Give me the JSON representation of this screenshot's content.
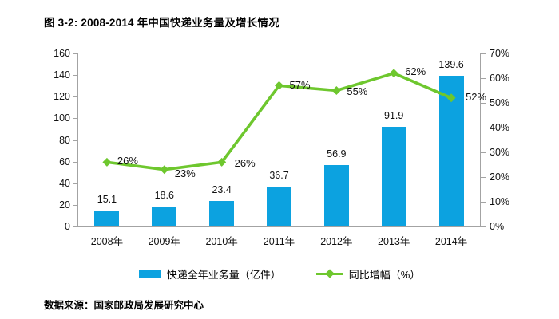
{
  "title": "图 3-2: 2008-2014 年中国快递业务量及增长情况",
  "source": "数据来源：国家邮政局发展研究中心",
  "legend": {
    "bars": "快递全年业务量（亿件）",
    "line": "同比增幅（%）"
  },
  "colors": {
    "bar": "#0CA2E0",
    "line": "#6EC72E",
    "axis": "#A3A3A3"
  },
  "chart_data": {
    "type": "bar",
    "subtype": "bar+line combo, dual axis",
    "title": "图 3-2: 2008-2014 年中国快递业务量及增长情况",
    "categories": [
      "2008年",
      "2009年",
      "2010年",
      "2011年",
      "2012年",
      "2013年",
      "2014年"
    ],
    "series": [
      {
        "name": "快递全年业务量（亿件）",
        "type": "bar",
        "axis": "left",
        "values": [
          15.1,
          18.6,
          23.4,
          36.7,
          56.9,
          91.9,
          139.6
        ],
        "labels": [
          "15.1",
          "18.6",
          "23.4",
          "36.7",
          "56.9",
          "91.9",
          "139.6"
        ]
      },
      {
        "name": "同比增幅（%）",
        "type": "line",
        "axis": "right",
        "values": [
          26,
          23,
          26,
          57,
          55,
          62,
          52
        ],
        "labels": [
          "26%",
          "23%",
          "26%",
          "57%",
          "55%",
          "62%",
          "52%"
        ]
      }
    ],
    "left_axis": {
      "min": 0,
      "max": 160,
      "step": 20,
      "ticks": [
        "0",
        "20",
        "40",
        "60",
        "80",
        "100",
        "120",
        "140",
        "160"
      ]
    },
    "right_axis": {
      "min": 0,
      "max": 70,
      "step": 10,
      "ticks": [
        "0%",
        "10%",
        "20%",
        "30%",
        "40%",
        "50%",
        "60%",
        "70%"
      ]
    },
    "grid": false,
    "legend_position": "bottom"
  }
}
